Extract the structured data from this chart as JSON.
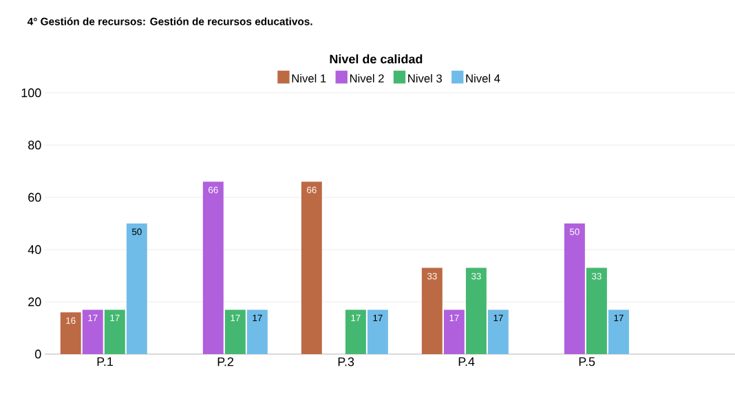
{
  "chart_data": {
    "type": "bar",
    "title": "4° Gestión de recursos: Gestión de recursos educativos.",
    "legend_title": "Nivel de calidad",
    "categories": [
      "P.1",
      "P.2",
      "P.3",
      "P.4",
      "P.5"
    ],
    "series": [
      {
        "name": "Nivel 1",
        "color": "#bc6a44",
        "values": [
          16,
          null,
          66,
          33,
          null
        ]
      },
      {
        "name": "Nivel 2",
        "color": "#b060dc",
        "values": [
          17,
          66,
          null,
          17,
          50
        ]
      },
      {
        "name": "Nivel 3",
        "color": "#44b870",
        "values": [
          17,
          17,
          17,
          33,
          33
        ]
      },
      {
        "name": "Nivel 4",
        "color": "#70bce8",
        "values": [
          50,
          17,
          17,
          17,
          17
        ]
      }
    ],
    "ylim": [
      0,
      100
    ],
    "yticks": [
      0,
      20,
      40,
      60,
      80,
      100
    ],
    "grid": "y",
    "legend": "top",
    "data_labels": true
  }
}
